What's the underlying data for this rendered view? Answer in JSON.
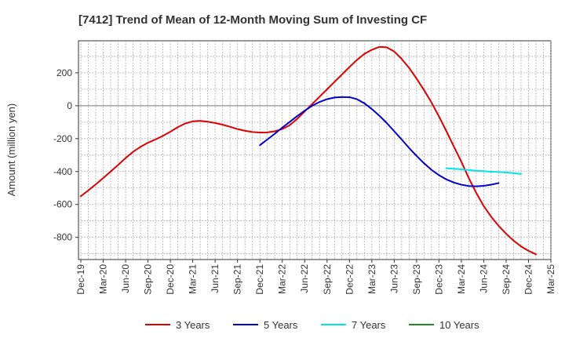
{
  "chart_data": {
    "type": "line",
    "title": "[7412]  Trend of Mean of 12-Month Moving Sum of Investing CF",
    "xlabel": "",
    "ylabel": "Amount (million yen)",
    "ylim": [
      -935,
      395
    ],
    "yticks": [
      200,
      0,
      -200,
      -400,
      -600,
      -800
    ],
    "grid": true,
    "legend_position": "bottom",
    "x_tick_labels": [
      "Dec-19",
      "Mar-20",
      "Jun-20",
      "Sep-20",
      "Dec-20",
      "Mar-21",
      "Jun-21",
      "Sep-21",
      "Dec-21",
      "Mar-22",
      "Jun-22",
      "Sep-22",
      "Dec-22",
      "Mar-23",
      "Jun-23",
      "Sep-23",
      "Dec-23",
      "Mar-24",
      "Jun-24",
      "Sep-24",
      "Dec-24",
      "Mar-25"
    ],
    "series": [
      {
        "name": "3 Years",
        "color": "#dd0000",
        "start_index": 0,
        "values": [
          -550,
          -515,
          -478,
          -440,
          -400,
          -360,
          -318,
          -280,
          -250,
          -225,
          -205,
          -183,
          -158,
          -130,
          -108,
          -95,
          -92,
          -97,
          -105,
          -115,
          -128,
          -142,
          -152,
          -160,
          -163,
          -162,
          -155,
          -142,
          -118,
          -80,
          -35,
          10,
          55,
          100,
          145,
          190,
          235,
          278,
          315,
          340,
          358,
          355,
          330,
          285,
          230,
          165,
          95,
          20,
          -65,
          -155,
          -248,
          -340,
          -440,
          -530,
          -610,
          -675,
          -730,
          -778,
          -820,
          -855,
          -882,
          -903
        ]
      },
      {
        "name": "5 Years",
        "color": "#0000cc",
        "start_index": 24,
        "values": [
          -240,
          -205,
          -170,
          -133,
          -98,
          -63,
          -30,
          0,
          23,
          40,
          50,
          53,
          52,
          40,
          15,
          -20,
          -60,
          -105,
          -155,
          -205,
          -257,
          -305,
          -350,
          -390,
          -422,
          -448,
          -467,
          -480,
          -488,
          -490,
          -487,
          -480,
          -470
        ]
      },
      {
        "name": "7 Years",
        "color": "#00e5e5",
        "start_index": 49,
        "values": [
          -380,
          -383,
          -387,
          -391,
          -395,
          -398,
          -401,
          -403,
          -405,
          -410,
          -415
        ]
      },
      {
        "name": "10 Years",
        "color": "#228b22",
        "start_index": 0,
        "values": []
      }
    ]
  }
}
